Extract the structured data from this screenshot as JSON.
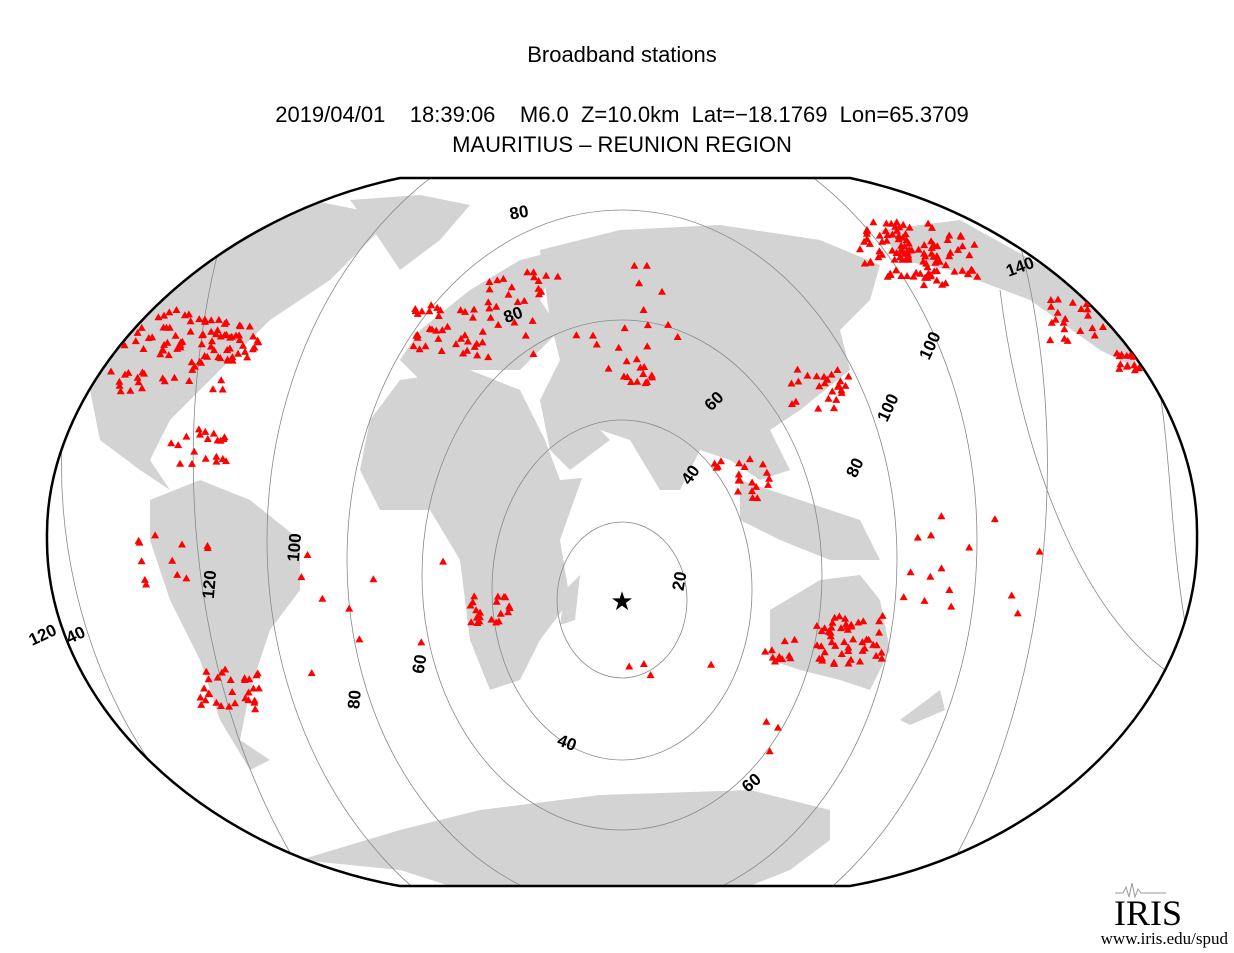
{
  "header": {
    "title": "Broadband stations",
    "event": "2019/04/01    18:39:06    M6.0  Z=10.0km  Lat=−18.1769  Lon=65.3709",
    "region": "MAURITIUS – REUNION REGION"
  },
  "contour_labels": [
    "20",
    "40",
    "40",
    "60",
    "60",
    "60",
    "80",
    "80",
    "80",
    "80",
    "100",
    "100",
    "100",
    "120",
    "120",
    "140",
    "40"
  ],
  "logo": {
    "name": "IRIS",
    "url": "www.iris.edu/spud"
  }
}
